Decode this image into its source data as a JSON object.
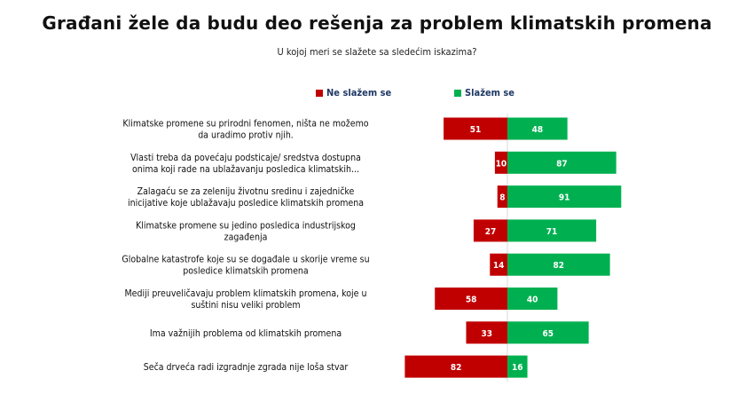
{
  "chart_data": {
    "type": "bar",
    "orientation": "horizontal-diverging",
    "title": "Građani žele da budu deo rešenja za problem klimatskih promena",
    "subtitle": "U kojoj meri se slažete sa sledećim iskazima?",
    "legend_position": "top",
    "grid": false,
    "categories": [
      [
        "Klimatske promene su prirodni fenomen, ništa ne možemo",
        "da uradimo protiv njih."
      ],
      [
        "Vlasti treba da povećaju podsticaje/ sredstva dostupna",
        "onima koji rade na ublažavanju posledica klimatskih..."
      ],
      [
        "Zalagaću se za zeleniju životnu sredinu i zajedničke",
        "inicijative koje ublažavaju posledice klimatskih promena"
      ],
      [
        "Klimatske promene su jedino posledica industrijskog",
        "zagađenja"
      ],
      [
        "Globalne katastrofe koje su se događale u skorije vreme su",
        "posledice klimatskih promena"
      ],
      [
        "Mediji preuveličavaju problem klimatskih promena, koje u",
        "suštini nisu veliki problem"
      ],
      [
        "Ima važnijih problema od klimatskih promena"
      ],
      [
        "Seča drveća radi izgradnje zgrada nije loša stvar"
      ]
    ],
    "series": [
      {
        "name": "Ne slažem se",
        "color": "#c00000",
        "direction": "left",
        "values": [
          51,
          10,
          8,
          27,
          14,
          58,
          33,
          82
        ]
      },
      {
        "name": "Slažem se",
        "color": "#00b050",
        "direction": "right",
        "values": [
          48,
          87,
          91,
          71,
          82,
          40,
          65,
          16
        ]
      }
    ]
  }
}
